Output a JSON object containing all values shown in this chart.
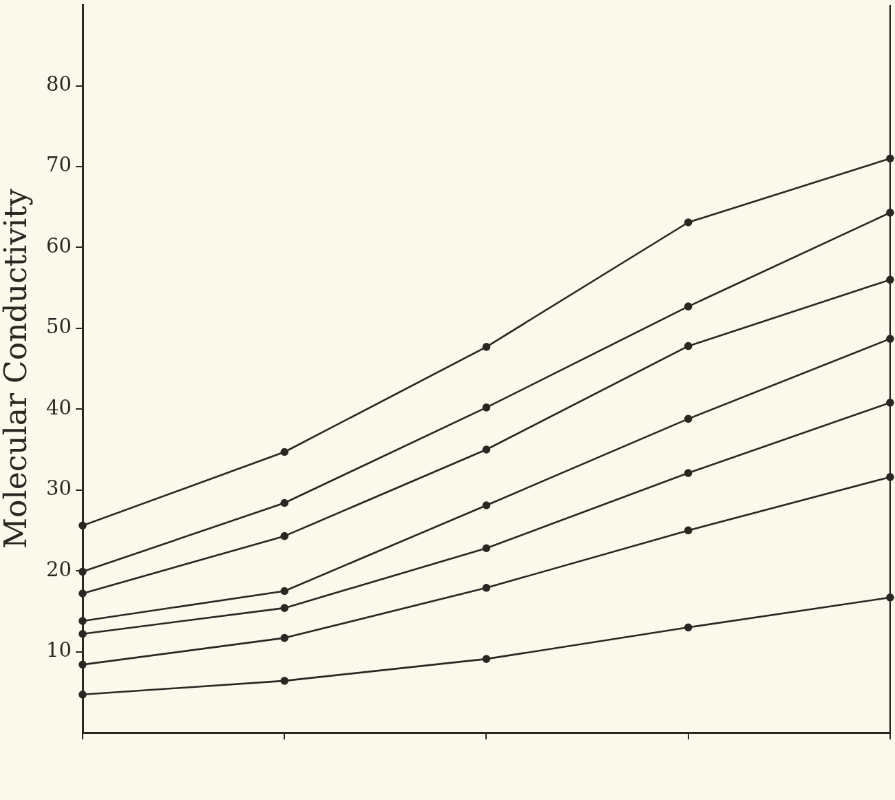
{
  "chart_data": {
    "type": "line",
    "ylabel": "Molecular Conductivity",
    "categories": [
      null,
      null,
      null,
      null,
      null
    ],
    "series": [
      {
        "color": "#2b2622",
        "values": [
          25.6,
          34.7,
          47.7,
          63.1,
          71.0
        ]
      },
      {
        "color": "#2b2622",
        "values": [
          19.9,
          28.4,
          40.2,
          52.7,
          64.3
        ]
      },
      {
        "color": "#2b2622",
        "values": [
          17.2,
          24.3,
          35.0,
          47.8,
          56.0
        ]
      },
      {
        "color": "#2b2622",
        "values": [
          13.8,
          17.5,
          28.1,
          38.8,
          48.7
        ]
      },
      {
        "color": "#2b2622",
        "values": [
          12.2,
          15.4,
          22.8,
          32.1,
          40.8
        ]
      },
      {
        "color": "#2b2622",
        "values": [
          8.4,
          11.7,
          17.9,
          25.0,
          31.6
        ]
      },
      {
        "color": "#2b2622",
        "values": [
          4.7,
          6.4,
          9.1,
          13.0,
          16.7
        ]
      }
    ],
    "ylim": [
      0,
      90
    ],
    "yticks": [
      10,
      20,
      30,
      40,
      50,
      60,
      70,
      80
    ],
    "grid": false,
    "tick_labels": "y",
    "marker": "circle",
    "line_style": "solid"
  }
}
